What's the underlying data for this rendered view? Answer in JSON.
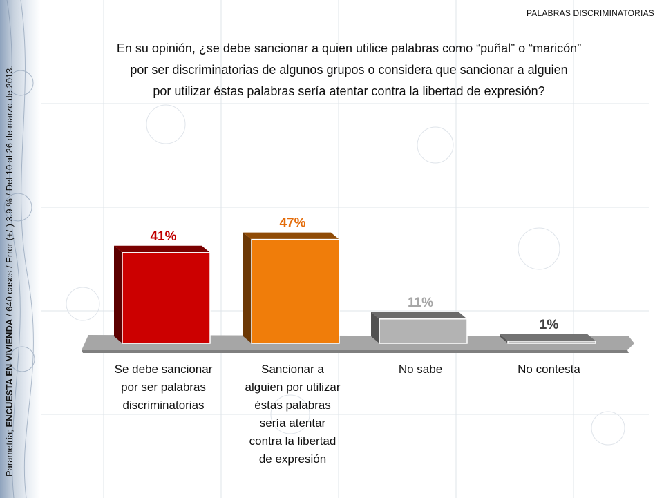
{
  "header_tag": "PALABRAS DISCRIMINATORIAS",
  "question": "En su opinión, ¿se debe sancionar a quien utilice palabras como “puñal” o “maricón” por ser discriminatorias de algunos grupos o considera que sancionar a alguien por utilizar éstas palabras sería atentar contra la libertad de expresión?",
  "question_lines": [
    "En su opinión, ¿se debe sancionar a quien utilice palabras como “puñal” o “maricón”",
    "por ser discriminatorias de algunos grupos o considera que sancionar a alguien",
    "por utilizar éstas palabras sería atentar contra la libertad de expresión?"
  ],
  "side_note": {
    "prefix": "Parametría; ",
    "bold": "ENCUESTA EN VIVIENDA",
    "suffix": " / 640 casos / Error (+/-) 3.9 % / Del 10 al 26 de marzo de 2013."
  },
  "colors": {
    "bar1": "#cc0000",
    "bar2": "#f07d0a",
    "bar3": "#b3b3b3",
    "bar4": "#bfbfbf",
    "label1": "#c00000",
    "label2": "#e46c0a",
    "label3": "#a6a6a6",
    "label4": "#404040"
  },
  "chart_data": {
    "type": "bar",
    "categories": [
      "Se debe sancionar por ser palabras discriminatorias",
      "Sancionar a alguien por utilizar éstas palabras sería atentar contra la libertad de expresión",
      "No sabe",
      "No contesta"
    ],
    "category_lines": [
      [
        "Se debe sancionar",
        "por ser palabras",
        "discriminatorias"
      ],
      [
        "Sancionar a",
        "alguien por utilizar",
        "éstas palabras",
        "sería atentar",
        "contra la libertad",
        "de expresión"
      ],
      [
        "No sabe"
      ],
      [
        "No contesta"
      ]
    ],
    "values": [
      41,
      47,
      11,
      1
    ],
    "data_labels": [
      "41%",
      "47%",
      "11%",
      "1%"
    ],
    "ylim": [
      0,
      100
    ],
    "title": "",
    "xlabel": "",
    "ylabel": ""
  }
}
